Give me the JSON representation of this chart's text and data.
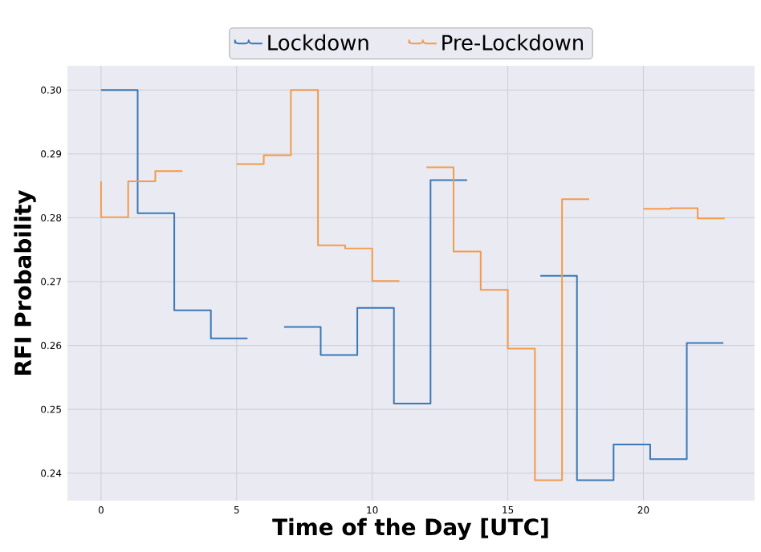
{
  "chart_data": {
    "type": "step",
    "xlabel": "Time of the Day [UTC]",
    "ylabel": "RFI Probability",
    "series": [
      {
        "name": "Lockdown",
        "color": "#3a78b5",
        "x": [
          0,
          1.35,
          2.7,
          4.05,
          5.4,
          6.0,
          6.75,
          8.1,
          9.45,
          10.8,
          12.15,
          13.5,
          15.0,
          16.2,
          17.55,
          18.9,
          20.25,
          21.6,
          22.95
        ],
        "values": [
          0.3,
          0.3,
          0.2807,
          0.2655,
          0.2611,
          null,
          0.2629,
          0.2629,
          0.2585,
          0.2659,
          0.2509,
          0.2859,
          null,
          0.2709,
          0.2709,
          0.2389,
          0.2445,
          0.2422,
          0.2604
        ]
      },
      {
        "name": "Pre-Lockdown",
        "color": "#f39a4a",
        "x": [
          0,
          1,
          2,
          3,
          4,
          5,
          6,
          7,
          8,
          9,
          10,
          11,
          11.5,
          12,
          13,
          14,
          15,
          16,
          17,
          18,
          19,
          20,
          21,
          22,
          23
        ],
        "values": [
          0.2857,
          0.2801,
          0.2857,
          0.2873,
          null,
          0.2884,
          0.2884,
          0.2898,
          0.3,
          0.2757,
          0.2752,
          0.2701,
          null,
          0.2879,
          0.2879,
          0.2747,
          0.2687,
          0.2595,
          0.2389,
          0.2829,
          null,
          0.2814,
          0.2814,
          0.2815,
          0.2799
        ]
      }
    ],
    "xlim": [
      -1.24,
      24.1
    ],
    "ylim": [
      0.2357,
      0.3038
    ],
    "xticks": [
      0,
      5,
      10,
      15,
      20
    ],
    "yticks": [
      {
        "value": 0.24,
        "label": "0.24"
      },
      {
        "value": 0.25,
        "label": "0.25"
      },
      {
        "value": 0.26,
        "label": "0.26"
      },
      {
        "value": 0.27,
        "label": "0.27"
      },
      {
        "value": 0.28,
        "label": "0.28"
      },
      {
        "value": 0.29,
        "label": "0.29"
      },
      {
        "value": 0.3,
        "label": "0.30"
      }
    ],
    "grid": true,
    "legend": "top"
  }
}
